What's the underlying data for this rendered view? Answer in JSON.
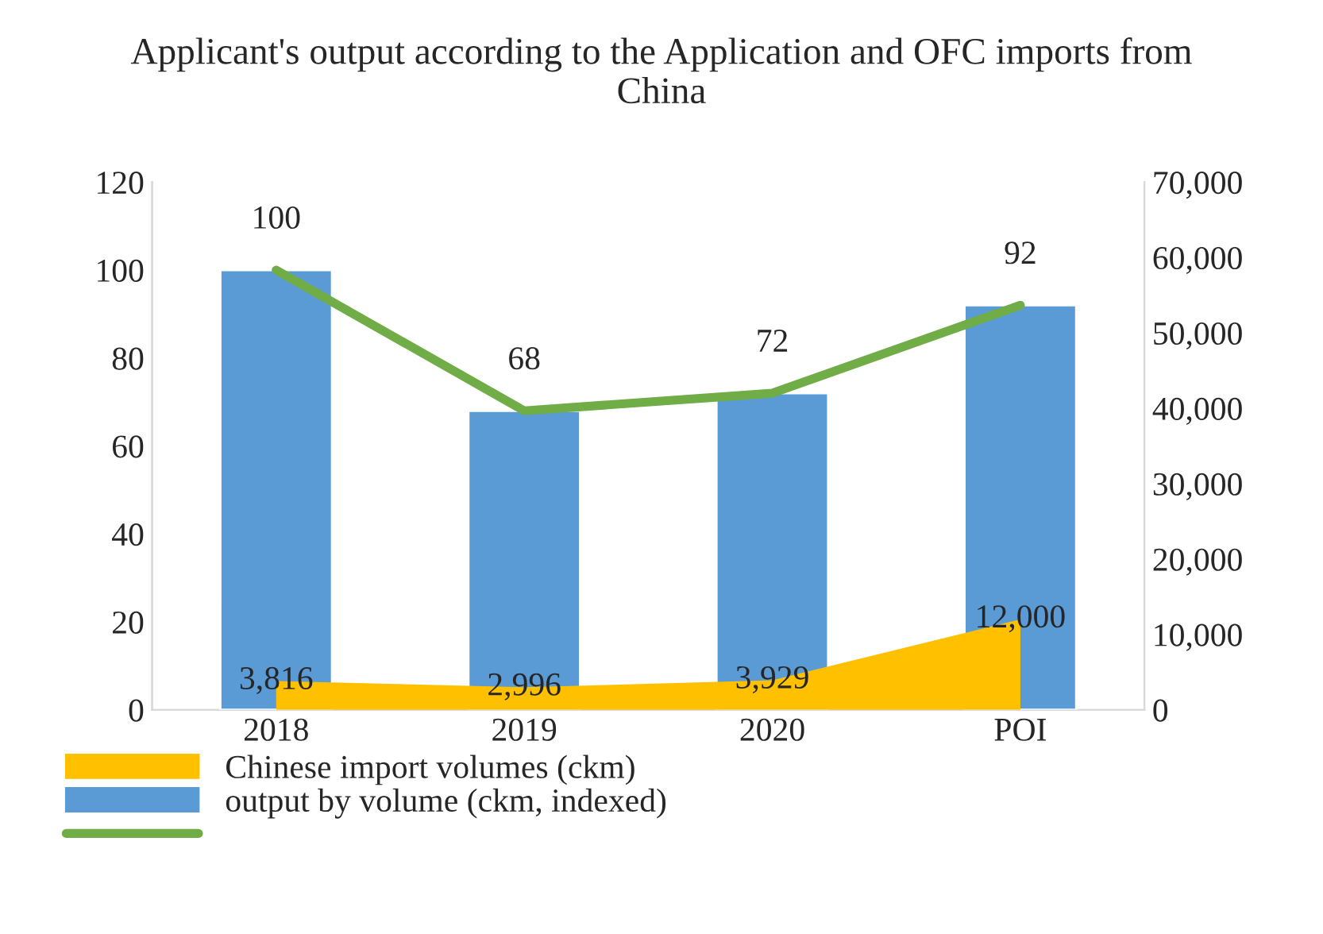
{
  "chart_data": {
    "type": "bar",
    "title": "Applicant's output according to the Application and OFC imports from China",
    "categories": [
      "2018",
      "2019",
      "2020",
      "POI"
    ],
    "series": [
      {
        "type": "area",
        "name": "Chinese import volumes (ckm)",
        "color": "#ffc000",
        "axis": "y2",
        "values": [
          3816,
          2996,
          3929,
          12000
        ],
        "value_labels": [
          "3,816",
          "2,996",
          "3,929",
          "12,000"
        ]
      },
      {
        "name": "output by volume (ckm, indexed)",
        "color": "#5b9bd5",
        "values": [
          100,
          68,
          72,
          92
        ],
        "value_labels": [
          "100",
          "68",
          "72",
          "92"
        ]
      },
      {
        "type": "line",
        "color": "#70ad47",
        "values": [
          100,
          68,
          72,
          92
        ]
      }
    ],
    "ylim": [
      0,
      120
    ],
    "yticks": [
      0,
      20,
      40,
      60,
      80,
      100,
      120
    ],
    "y2lim": [
      0,
      70000
    ],
    "y2ticks": [
      {
        "value": 0,
        "label": "0"
      },
      {
        "value": 10000,
        "label": "10,000"
      },
      {
        "value": 20000,
        "label": "20,000"
      },
      {
        "value": 30000,
        "label": "30,000"
      },
      {
        "value": 40000,
        "label": "40,000"
      },
      {
        "value": 50000,
        "label": "50,000"
      },
      {
        "value": 60000,
        "label": "60,000"
      },
      {
        "value": 70000,
        "label": "70,000"
      }
    ],
    "legend": "bottom",
    "grid": false
  }
}
